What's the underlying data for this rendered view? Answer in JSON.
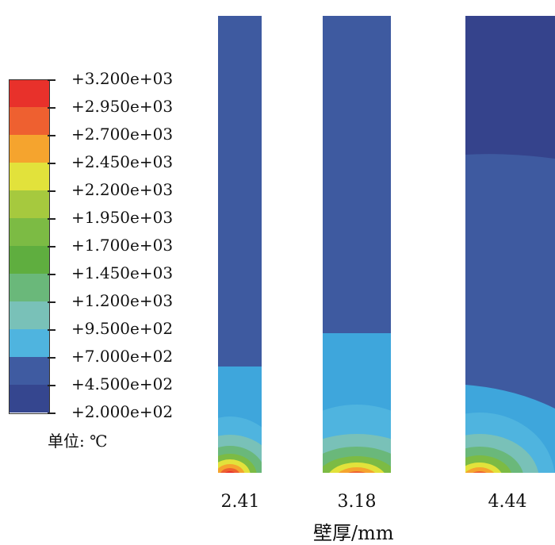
{
  "legend": {
    "values": [
      "+3.200e+03",
      "+2.950e+03",
      "+2.700e+03",
      "+2.450e+03",
      "+2.200e+03",
      "+1.950e+03",
      "+1.700e+03",
      "+1.450e+03",
      "+1.200e+03",
      "+9.500e+02",
      "+7.000e+02",
      "+4.500e+02",
      "+2.000e+02"
    ],
    "colors": [
      "#e8312b",
      "#ee6030",
      "#f5a42e",
      "#e2e23b",
      "#a6c93e",
      "#7cbb44",
      "#5fae3f",
      "#6ab87a",
      "#79c1b8",
      "#4fb4df",
      "#3f5ba1",
      "#35468f"
    ],
    "unit": "单位: ℃"
  },
  "cases": [
    {
      "label": "2.41"
    },
    {
      "label": "3.18"
    },
    {
      "label": "4.44"
    }
  ],
  "xlabel": "壁厚/mm"
}
